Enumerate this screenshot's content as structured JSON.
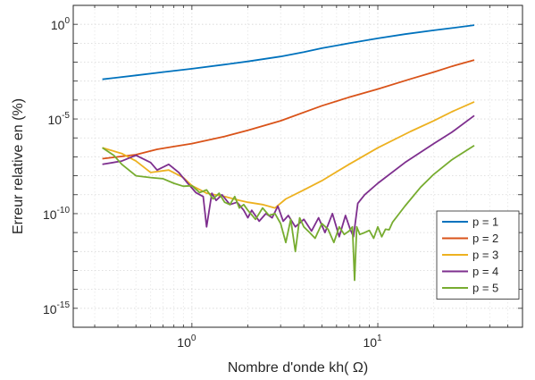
{
  "chart_data": {
    "type": "line",
    "title": "",
    "xlabel": "Nombre d'onde kh( Ω)",
    "ylabel": "Erreur relative en (%)",
    "xscale": "log",
    "yscale": "log",
    "xlim": [
      0.23,
      60
    ],
    "ylim": [
      1e-16,
      10.0
    ],
    "grid": true,
    "legend_position": "bottom-right",
    "x_ticks": [
      {
        "value": 1,
        "base": "10",
        "exp": "0"
      },
      {
        "value": 10,
        "base": "10",
        "exp": "1"
      }
    ],
    "y_ticks": [
      {
        "value": 1,
        "base": "10",
        "exp": "0"
      },
      {
        "value": 1e-05,
        "base": "10",
        "exp": "-5"
      },
      {
        "value": 1e-10,
        "base": "10",
        "exp": "-10"
      },
      {
        "value": 1e-15,
        "base": "10",
        "exp": "-15"
      }
    ],
    "series": [
      {
        "name": "p = 1",
        "color": "#0072BD",
        "x": [
          0.33,
          0.5,
          0.7,
          1.0,
          1.5,
          2.0,
          3.0,
          4.0,
          5.0,
          7.0,
          10.0,
          14.0,
          20.0,
          25.0,
          33.0
        ],
        "y": [
          0.00125,
          0.002,
          0.003,
          0.0045,
          0.0075,
          0.011,
          0.02,
          0.034,
          0.055,
          0.1,
          0.18,
          0.3,
          0.48,
          0.63,
          0.9
        ]
      },
      {
        "name": "p = 2",
        "color": "#D95319",
        "x": [
          0.33,
          0.5,
          0.65,
          0.8,
          1.0,
          1.5,
          2.0,
          3.0,
          5.0,
          7.0,
          10.0,
          15.0,
          20.0,
          25.0,
          33.0
        ],
        "y": [
          8e-08,
          1.3e-07,
          2.5e-07,
          3.5e-07,
          5e-07,
          1.2e-06,
          2.5e-06,
          8e-06,
          5e-05,
          0.00014,
          0.00038,
          0.0013,
          0.003,
          0.006,
          0.013
        ]
      },
      {
        "name": "p = 3",
        "color": "#EDB120",
        "x": [
          0.33,
          0.42,
          0.5,
          0.6,
          0.75,
          0.9,
          1.0,
          1.2,
          1.5,
          1.8,
          2.0,
          2.4,
          2.8,
          3.2,
          4.0,
          5.0,
          7.0,
          10.0,
          15.0,
          20.0,
          25.0,
          33.0
        ],
        "y": [
          3e-07,
          1.5e-07,
          6e-08,
          1.5e-08,
          2e-08,
          8e-09,
          3e-09,
          1.2e-09,
          8e-10,
          5e-10,
          4e-10,
          3e-10,
          2e-10,
          6e-10,
          1.8e-09,
          5.5e-09,
          4e-08,
          3e-07,
          2.2e-06,
          8e-06,
          2.4e-05,
          8e-05
        ]
      },
      {
        "name": "p = 4",
        "color": "#7E2F8E",
        "x": [
          0.33,
          0.42,
          0.5,
          0.6,
          0.65,
          0.75,
          0.85,
          0.95,
          1.05,
          1.15,
          1.2,
          1.28,
          1.35,
          1.45,
          1.6,
          1.75,
          1.9,
          2.0,
          2.1,
          2.3,
          2.5,
          2.7,
          2.9,
          3.1,
          3.3,
          3.6,
          4.0,
          4.4,
          4.8,
          5.2,
          5.7,
          6.2,
          6.7,
          7.1,
          7.4,
          7.8,
          8.5,
          10.0,
          14.0,
          20.0,
          25.0,
          33.0
        ],
        "y": [
          4e-08,
          6e-08,
          1.2e-07,
          5e-08,
          2e-08,
          4e-08,
          1.5e-08,
          4e-09,
          1.3e-09,
          8e-10,
          2e-11,
          1.2e-09,
          5e-10,
          1e-09,
          3e-10,
          4e-10,
          1.5e-10,
          6e-11,
          1.5e-10,
          4e-11,
          1e-10,
          6e-11,
          2.5e-10,
          4e-11,
          8e-11,
          2e-11,
          5e-11,
          1.2e-11,
          6e-11,
          1e-11,
          1e-10,
          6e-12,
          8e-11,
          1.5e-11,
          6e-12,
          3.5e-10,
          1e-09,
          4e-09,
          5e-08,
          5e-07,
          2e-06,
          1.5e-05
        ]
      },
      {
        "name": "p = 5",
        "color": "#77AC30",
        "x": [
          0.33,
          0.38,
          0.42,
          0.5,
          0.6,
          0.7,
          0.8,
          0.9,
          1.0,
          1.1,
          1.2,
          1.3,
          1.4,
          1.5,
          1.6,
          1.7,
          1.8,
          1.9,
          2.0,
          2.2,
          2.4,
          2.6,
          2.8,
          3.0,
          3.2,
          3.4,
          3.6,
          3.8,
          4.0,
          4.3,
          4.6,
          5.0,
          5.4,
          5.8,
          6.2,
          6.6,
          7.0,
          7.3,
          7.5,
          7.7,
          8.0,
          8.5,
          9.0,
          9.5,
          10.0,
          10.5,
          11.0,
          11.5,
          12.0,
          14.0,
          17.0,
          20.0,
          25.0,
          33.0
        ],
        "y": [
          3e-07,
          1.2e-07,
          4e-08,
          1e-08,
          8e-09,
          7e-09,
          4e-09,
          2.8e-09,
          3e-09,
          1.3e-09,
          1.8e-09,
          6e-10,
          1.2e-09,
          4e-10,
          3e-10,
          8e-10,
          2e-10,
          3e-10,
          1.5e-10,
          5e-11,
          2e-10,
          8e-11,
          1e-10,
          3e-11,
          3e-12,
          5e-11,
          1e-12,
          6e-11,
          2e-11,
          1e-11,
          5e-12,
          3e-11,
          1.5e-11,
          3e-12,
          2e-11,
          8e-12,
          1.2e-11,
          2e-11,
          3e-14,
          2e-11,
          8e-12,
          1e-11,
          1.3e-11,
          5e-12,
          2e-11,
          6e-12,
          1.5e-11,
          1.4e-11,
          3.5e-11,
          2.5e-10,
          2.5e-09,
          1.2e-08,
          7e-08,
          4e-07
        ]
      }
    ]
  }
}
